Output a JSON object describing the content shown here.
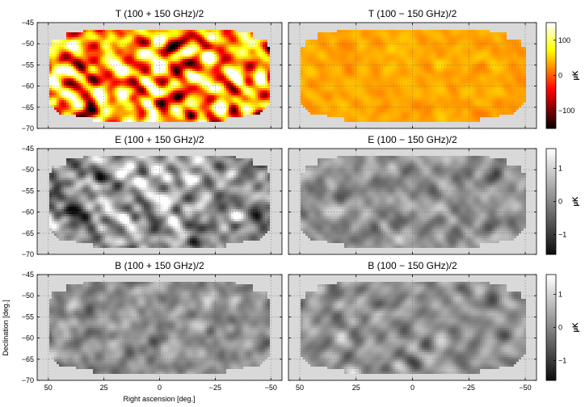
{
  "chart_data": {
    "type": "heatmap",
    "xlabel": "Right ascension [deg.]",
    "ylabel": "Declination [deg.]",
    "xlim": [
      55,
      -55
    ],
    "ylim": [
      -70,
      -45
    ],
    "xticks": [
      50,
      25,
      0,
      -25,
      -50
    ],
    "xtick_labels": [
      "50",
      "25",
      "0",
      "−25",
      "−50"
    ],
    "yticks": [
      -45,
      -50,
      -55,
      -60,
      -65,
      -70
    ],
    "ytick_labels": [
      "−45",
      "−50",
      "−55",
      "−60",
      "−65",
      "−70"
    ],
    "grid": true,
    "background_color": "#d9d9d9",
    "footprint_dec": [
      -68.5,
      -67.5,
      -46.5,
      -46.0
    ],
    "panels": [
      {
        "id": "T-sum",
        "title": "T (100 + 150 GHz)/2",
        "colormap": "hot",
        "amplitude": 1.0
      },
      {
        "id": "T-diff",
        "title": "T (100 − 150 GHz)/2",
        "colormap": "hot",
        "amplitude": 0.08
      },
      {
        "id": "E-sum",
        "title": "E (100 + 150 GHz)/2",
        "colormap": "gray",
        "amplitude": 0.85
      },
      {
        "id": "E-diff",
        "title": "E (100 − 150 GHz)/2",
        "colormap": "gray",
        "amplitude": 0.4
      },
      {
        "id": "B-sum",
        "title": "B (100 + 150 GHz)/2",
        "colormap": "gray",
        "amplitude": 0.4
      },
      {
        "id": "B-diff",
        "title": "B (100 − 150 GHz)/2",
        "colormap": "gray",
        "amplitude": 0.4
      }
    ],
    "colorbars": [
      {
        "row": "T",
        "colormap": "hot",
        "range": [
          -150,
          150
        ],
        "ticks": [
          100,
          0,
          -100
        ],
        "tick_labels": [
          "100",
          "0",
          "−100"
        ],
        "unit": "μK"
      },
      {
        "row": "E",
        "colormap": "gray",
        "range": [
          -1.6,
          1.6
        ],
        "ticks": [
          1,
          0,
          -1
        ],
        "tick_labels": [
          "1",
          "0",
          "−1"
        ],
        "unit": "μK"
      },
      {
        "row": "B",
        "colormap": "gray",
        "range": [
          -1.6,
          1.6
        ],
        "ticks": [
          1,
          0,
          -1
        ],
        "tick_labels": [
          "1",
          "0",
          "−1"
        ],
        "unit": "μK"
      }
    ]
  }
}
